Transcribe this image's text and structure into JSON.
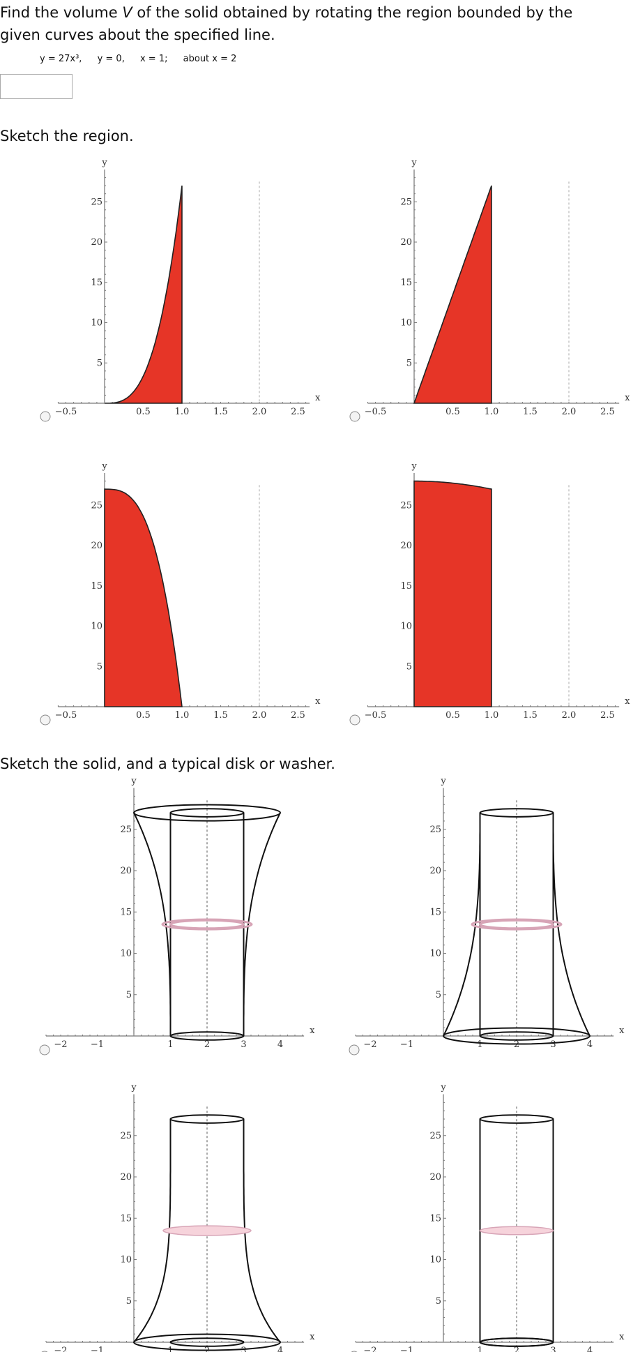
{
  "question": {
    "before": "Find the volume ",
    "variable": "V",
    "after": " of the solid obtained by rotating the region bounded by the given curves about the specified line."
  },
  "equation": [
    "y = 27x³,",
    "y = 0,",
    "x = 1;",
    "about x = 2"
  ],
  "sketch_region": "Sketch the region.",
  "sketch_solid": "Sketch the solid, and a typical disk or washer.",
  "region_axes": {
    "x_label": "x",
    "y_label": "y",
    "xticks": [
      "−0.5",
      "0.5",
      "1.0",
      "1.5",
      "2.0",
      "2.5"
    ],
    "yticks": [
      "5",
      "10",
      "15",
      "20",
      "25"
    ]
  },
  "solid_axes": {
    "x_label": "x",
    "y_label": "y",
    "xticks": [
      "−2",
      "−1",
      "1",
      "2",
      "3",
      "4"
    ],
    "yticks": [
      "5",
      "10",
      "15",
      "20",
      "25"
    ]
  }
}
